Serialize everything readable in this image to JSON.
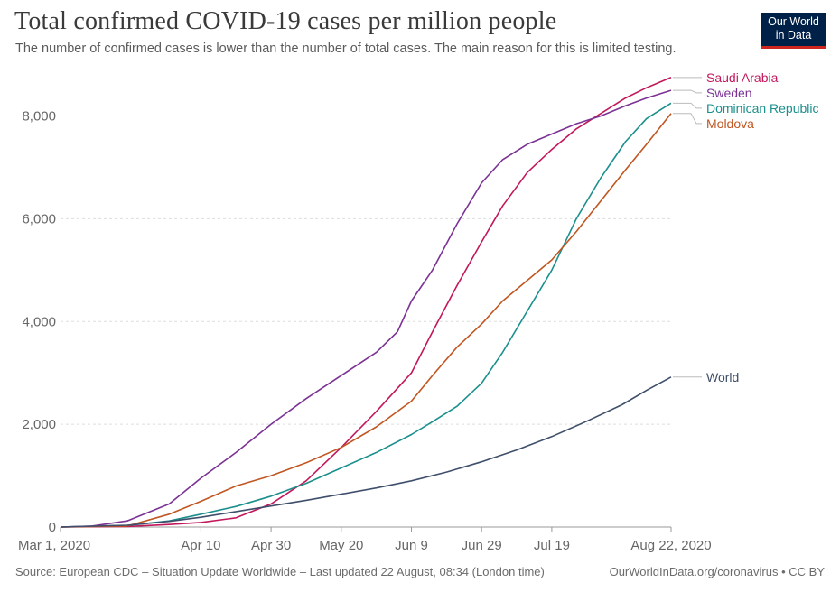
{
  "header": {
    "title": "Total confirmed COVID-19 cases per million people",
    "subtitle": "The number of confirmed cases is lower than the number of total cases. The main reason for this is limited testing."
  },
  "logo": {
    "line1": "Our World",
    "line2": "in Data",
    "bg_color": "#002147",
    "accent_color": "#ce261e"
  },
  "footer": {
    "source": "Source: European CDC – Situation Update Worldwide – Last updated 22 August, 08:34 (London time)",
    "url": "OurWorldInData.org/coronavirus • CC BY"
  },
  "chart_data": {
    "type": "line",
    "title": "Total confirmed COVID-19 cases per million people",
    "xlabel": "",
    "ylabel": "",
    "x_range": [
      "2020-03-01",
      "2020-08-22"
    ],
    "ylim": [
      0,
      8800
    ],
    "y_ticks": [
      0,
      2000,
      4000,
      6000,
      8000
    ],
    "y_tick_labels": [
      "0",
      "2,000",
      "4,000",
      "6,000",
      "8,000"
    ],
    "x_ticks": [
      "2020-03-01",
      "2020-04-10",
      "2020-04-30",
      "2020-05-20",
      "2020-06-09",
      "2020-06-29",
      "2020-07-19",
      "2020-08-22"
    ],
    "x_tick_labels": [
      "Mar 1, 2020",
      "Apr 10",
      "Apr 30",
      "May 20",
      "Jun 9",
      "Jun 29",
      "Jul 19",
      "Aug 22, 2020"
    ],
    "grid": "horizontal dashed",
    "legend": "right end labels",
    "series": [
      {
        "name": "Saudi Arabia",
        "color": "#c2185b",
        "x": [
          "2020-03-01",
          "2020-03-20",
          "2020-04-01",
          "2020-04-10",
          "2020-04-20",
          "2020-04-30",
          "2020-05-10",
          "2020-05-20",
          "2020-05-30",
          "2020-06-09",
          "2020-06-15",
          "2020-06-22",
          "2020-06-29",
          "2020-07-05",
          "2020-07-12",
          "2020-07-19",
          "2020-07-26",
          "2020-08-02",
          "2020-08-09",
          "2020-08-15",
          "2020-08-22"
        ],
        "y": [
          0,
          10,
          50,
          90,
          180,
          450,
          900,
          1550,
          2250,
          3000,
          3800,
          4700,
          5550,
          6250,
          6900,
          7350,
          7750,
          8050,
          8350,
          8550,
          8750
        ]
      },
      {
        "name": "Sweden",
        "color": "#7b3294",
        "x": [
          "2020-03-01",
          "2020-03-10",
          "2020-03-20",
          "2020-04-01",
          "2020-04-10",
          "2020-04-20",
          "2020-04-30",
          "2020-05-10",
          "2020-05-20",
          "2020-05-30",
          "2020-06-05",
          "2020-06-09",
          "2020-06-15",
          "2020-06-22",
          "2020-06-29",
          "2020-07-05",
          "2020-07-12",
          "2020-07-19",
          "2020-07-26",
          "2020-08-02",
          "2020-08-09",
          "2020-08-15",
          "2020-08-22"
        ],
        "y": [
          0,
          20,
          120,
          450,
          950,
          1450,
          2000,
          2500,
          2950,
          3400,
          3800,
          4400,
          5000,
          5900,
          6700,
          7150,
          7450,
          7650,
          7850,
          8000,
          8200,
          8350,
          8500
        ]
      },
      {
        "name": "Dominican Republic",
        "color": "#1a8f8c",
        "x": [
          "2020-03-01",
          "2020-03-20",
          "2020-04-01",
          "2020-04-10",
          "2020-04-20",
          "2020-04-30",
          "2020-05-10",
          "2020-05-20",
          "2020-05-30",
          "2020-06-09",
          "2020-06-15",
          "2020-06-22",
          "2020-06-29",
          "2020-07-05",
          "2020-07-12",
          "2020-07-19",
          "2020-07-26",
          "2020-08-02",
          "2020-08-09",
          "2020-08-15",
          "2020-08-22"
        ],
        "y": [
          0,
          30,
          120,
          250,
          400,
          600,
          850,
          1150,
          1450,
          1800,
          2050,
          2350,
          2800,
          3400,
          4200,
          5000,
          6000,
          6800,
          7500,
          7950,
          8250
        ]
      },
      {
        "name": "Moldova",
        "color": "#c05621",
        "x": [
          "2020-03-01",
          "2020-03-20",
          "2020-04-01",
          "2020-04-10",
          "2020-04-20",
          "2020-04-30",
          "2020-05-10",
          "2020-05-20",
          "2020-05-30",
          "2020-06-09",
          "2020-06-15",
          "2020-06-22",
          "2020-06-29",
          "2020-07-05",
          "2020-07-12",
          "2020-07-19",
          "2020-07-26",
          "2020-08-02",
          "2020-08-09",
          "2020-08-15",
          "2020-08-22"
        ],
        "y": [
          0,
          20,
          250,
          500,
          800,
          1000,
          1250,
          1550,
          1950,
          2450,
          2950,
          3500,
          3950,
          4400,
          4800,
          5200,
          5750,
          6350,
          6950,
          7450,
          8050
        ]
      },
      {
        "name": "World",
        "color": "#3f4f6b",
        "x": [
          "2020-03-01",
          "2020-03-20",
          "2020-04-01",
          "2020-04-10",
          "2020-04-20",
          "2020-04-30",
          "2020-05-10",
          "2020-05-20",
          "2020-05-30",
          "2020-06-09",
          "2020-06-19",
          "2020-06-29",
          "2020-07-09",
          "2020-07-19",
          "2020-07-29",
          "2020-08-08",
          "2020-08-15",
          "2020-08-22"
        ],
        "y": [
          0,
          35,
          110,
          190,
          300,
          410,
          520,
          640,
          760,
          900,
          1070,
          1270,
          1500,
          1760,
          2060,
          2380,
          2660,
          2920
        ]
      }
    ]
  }
}
